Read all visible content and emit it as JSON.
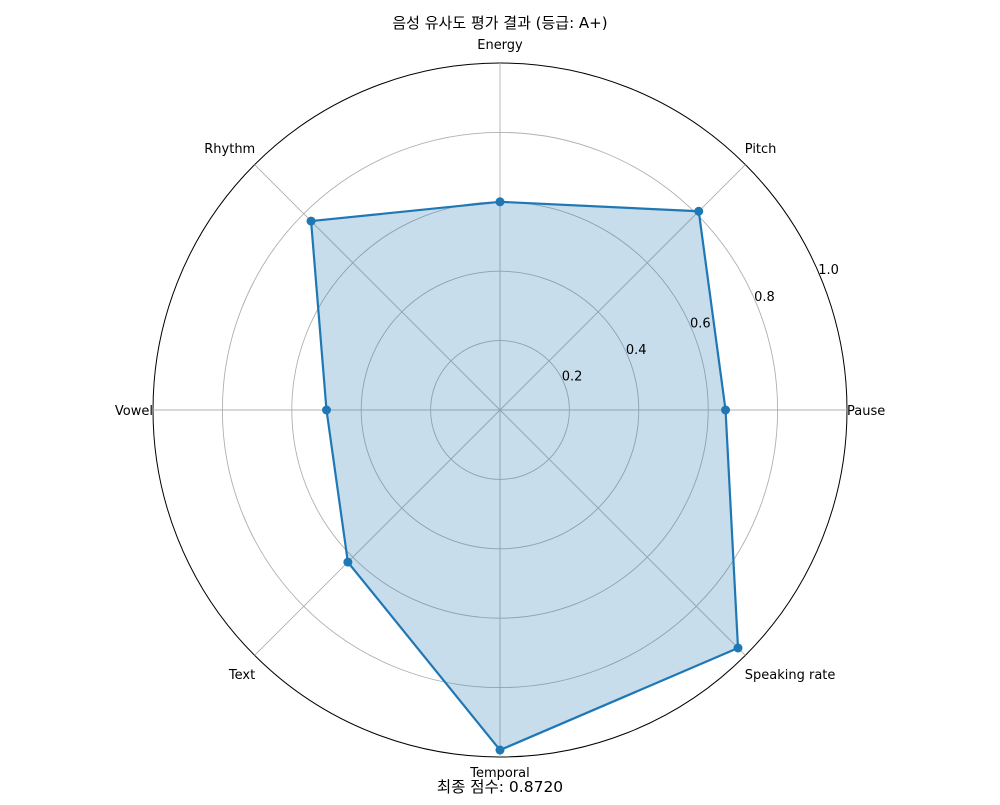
{
  "chart_data": {
    "type": "radar",
    "title": "음성 유사도 평가 결과 (등급: A+)",
    "footer": "최종 점수: 0.8720",
    "categories": [
      "Pause",
      "Pitch",
      "Energy",
      "Rhythm",
      "Vowel",
      "Text",
      "Temporal",
      "Speaking rate"
    ],
    "series": [
      {
        "values": [
          0.65,
          0.81,
          0.6,
          0.77,
          0.5,
          0.62,
          0.98,
          0.97
        ]
      }
    ],
    "rlim": [
      0,
      1.0
    ],
    "radial_ticks": [
      "0.2",
      "0.4",
      "0.6",
      "0.8",
      "1.0"
    ],
    "radial_tick_values": [
      0.2,
      0.4,
      0.6,
      0.8,
      1.0
    ],
    "grid": true,
    "colors": {
      "line": "#1f77b4",
      "fill": "#1f77b4",
      "grid": "#b0b0b0"
    }
  }
}
